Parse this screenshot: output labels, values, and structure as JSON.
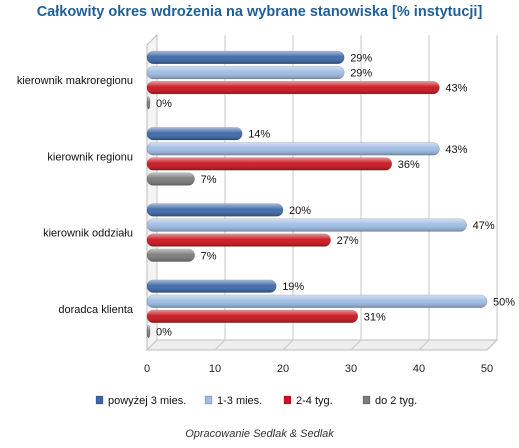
{
  "chart_data": {
    "type": "bar",
    "orientation": "horizontal",
    "title": "Całkowity okres wdrożenia na wybrane stanowiska [% instytucji]",
    "categories": [
      "kierownik makroregionu",
      "kierownik regionu",
      "kierownik oddziału",
      "doradca klienta"
    ],
    "series": [
      {
        "name": "powyżej 3 mies.",
        "values": [
          29,
          14,
          20,
          19
        ],
        "color": "#3b67a7"
      },
      {
        "name": "1-3 mies.",
        "values": [
          29,
          43,
          47,
          50
        ],
        "color": "#9dbbe3"
      },
      {
        "name": "2-4 tyg.",
        "values": [
          43,
          36,
          27,
          31
        ],
        "color": "#c8141c"
      },
      {
        "name": "do 2 tyg.",
        "values": [
          0,
          7,
          7,
          0
        ],
        "color": "#7a7a7a"
      }
    ],
    "value_suffix": "%",
    "xlim": [
      0,
      50
    ],
    "xticks": [
      0,
      10,
      20,
      30,
      40,
      50
    ],
    "grid": true,
    "legend_position": "bottom"
  },
  "footer": "Opracowanie Sedlak & Sedlak"
}
